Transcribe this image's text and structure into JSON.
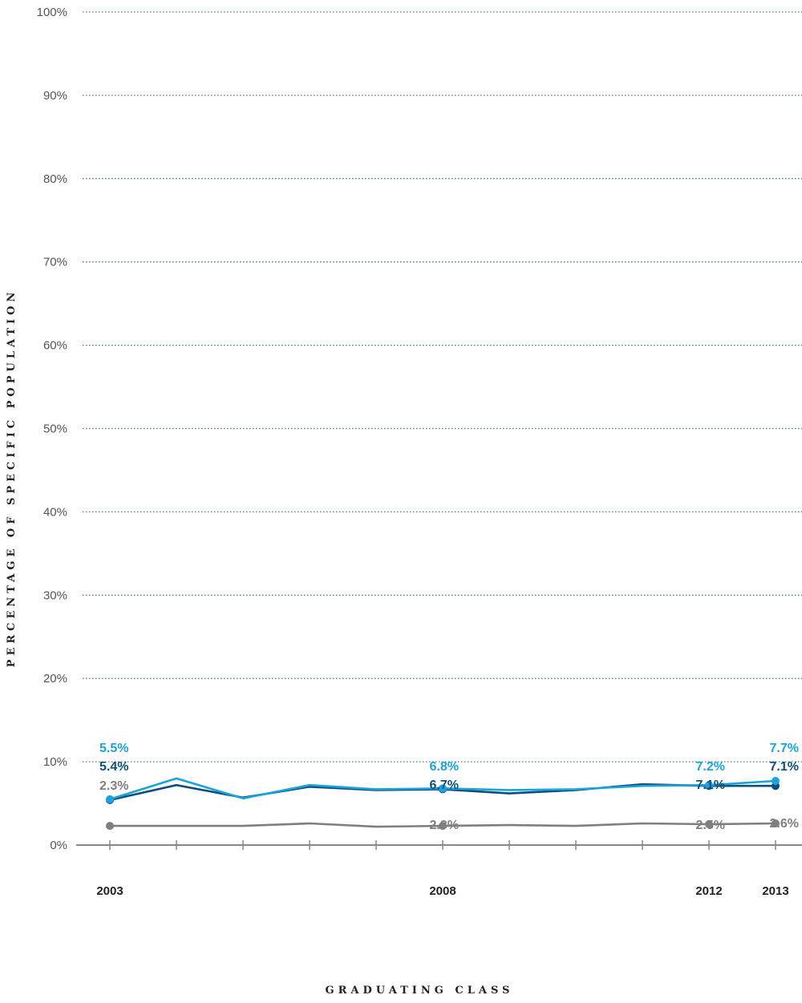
{
  "chart_data": {
    "type": "line",
    "xlabel": "GRADUATING CLASS",
    "ylabel": "PERCENTAGE OF SPECIFIC POPULATION",
    "ylim": [
      0,
      100
    ],
    "y_ticks": [
      "0%",
      "10%",
      "20%",
      "30%",
      "40%",
      "50%",
      "60%",
      "70%",
      "80%",
      "90%",
      "100%"
    ],
    "x": [
      2003,
      2004,
      2005,
      2006,
      2007,
      2008,
      2009,
      2010,
      2011,
      2012,
      2013
    ],
    "x_tick_labels": [
      {
        "x": 2003,
        "label": "2003"
      },
      {
        "x": 2008,
        "label": "2008"
      },
      {
        "x": 2012,
        "label": "2012"
      },
      {
        "x": 2013,
        "label": "2013"
      }
    ],
    "grid": true,
    "series": [
      {
        "color": "#1aa3dd",
        "values": [
          5.5,
          8.0,
          5.6,
          7.2,
          6.7,
          6.8,
          6.6,
          6.7,
          7.1,
          7.2,
          7.7
        ],
        "labels": [
          {
            "x": 2003,
            "text": "5.5%"
          },
          {
            "x": 2008,
            "text": "6.8%"
          },
          {
            "x": 2012,
            "text": "7.2%"
          },
          {
            "x": 2013,
            "text": "7.7%"
          }
        ]
      },
      {
        "color": "#0d4f78",
        "values": [
          5.4,
          7.2,
          5.7,
          7.0,
          6.6,
          6.7,
          6.2,
          6.6,
          7.3,
          7.1,
          7.1
        ],
        "labels": [
          {
            "x": 2003,
            "text": "5.4%"
          },
          {
            "x": 2008,
            "text": "6.7%"
          },
          {
            "x": 2012,
            "text": "7.1%"
          },
          {
            "x": 2013,
            "text": "7.1%"
          }
        ]
      },
      {
        "color": "#7f7f7f",
        "values": [
          2.3,
          2.3,
          2.3,
          2.6,
          2.2,
          2.3,
          2.4,
          2.3,
          2.6,
          2.5,
          2.6
        ],
        "labels": [
          {
            "x": 2003,
            "text": "2.3%"
          },
          {
            "x": 2008,
            "text": "2.3%"
          },
          {
            "x": 2012,
            "text": "2.5%"
          },
          {
            "x": 2013,
            "text": "2.6%"
          }
        ]
      }
    ]
  }
}
